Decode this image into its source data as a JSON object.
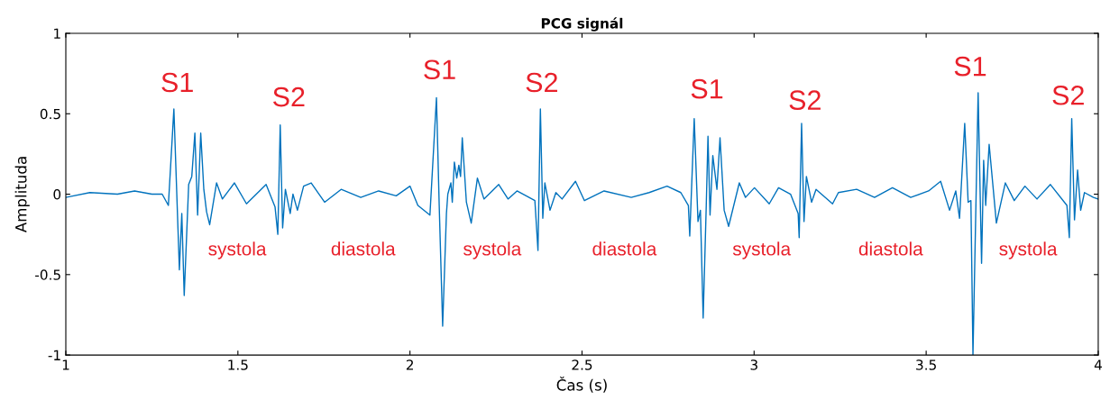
{
  "chart_data": {
    "type": "line",
    "title": "PCG signál",
    "xlabel": "Čas (s)",
    "ylabel": "Amplituda",
    "xlim": [
      1,
      4
    ],
    "ylim": [
      -1,
      1
    ],
    "xticks": [
      1,
      1.5,
      2,
      2.5,
      3,
      3.5,
      4
    ],
    "yticks": [
      {
        "value": -1,
        "label": "-1"
      },
      {
        "value": -0.5,
        "label": "-0.5"
      },
      0,
      0.5,
      1
    ],
    "grid": false,
    "legend": false,
    "series": [
      {
        "color": "#0072bd",
        "x": [
          1.0,
          1.07,
          1.15,
          1.2,
          1.25,
          1.28,
          1.298,
          1.314,
          1.33,
          1.337,
          1.344,
          1.357,
          1.366,
          1.375,
          1.383,
          1.392,
          1.401,
          1.409,
          1.418,
          1.438,
          1.455,
          1.49,
          1.525,
          1.582,
          1.608,
          1.616,
          1.623,
          1.63,
          1.638,
          1.652,
          1.66,
          1.673,
          1.691,
          1.713,
          1.752,
          1.8,
          1.857,
          1.909,
          1.96,
          2.0,
          2.023,
          2.058,
          2.077,
          2.085,
          2.095,
          2.106,
          2.11,
          2.119,
          2.123,
          2.129,
          2.136,
          2.142,
          2.147,
          2.152,
          2.164,
          2.178,
          2.196,
          2.215,
          2.258,
          2.285,
          2.311,
          2.363,
          2.372,
          2.379,
          2.386,
          2.392,
          2.407,
          2.424,
          2.442,
          2.481,
          2.507,
          2.564,
          2.643,
          2.695,
          2.747,
          2.787,
          2.809,
          2.813,
          2.826,
          2.837,
          2.844,
          2.852,
          2.861,
          2.866,
          2.872,
          2.88,
          2.892,
          2.901,
          2.913,
          2.926,
          2.957,
          2.975,
          3.001,
          3.044,
          3.071,
          3.106,
          3.128,
          3.131,
          3.138,
          3.145,
          3.152,
          3.167,
          3.18,
          3.228,
          3.245,
          3.298,
          3.35,
          3.402,
          3.455,
          3.507,
          3.542,
          3.568,
          3.586,
          3.597,
          3.612,
          3.622,
          3.63,
          3.636,
          3.651,
          3.661,
          3.667,
          3.673,
          3.683,
          3.704,
          3.73,
          3.756,
          3.787,
          3.822,
          3.861,
          3.909,
          3.916,
          3.923,
          3.931,
          3.94,
          3.949,
          3.96,
          3.986,
          4.0
        ],
        "values": [
          -0.02,
          0.01,
          0.0,
          0.02,
          0.0,
          0.0,
          -0.07,
          0.53,
          -0.47,
          -0.12,
          -0.63,
          0.06,
          0.11,
          0.38,
          -0.13,
          0.38,
          0.03,
          -0.11,
          -0.19,
          0.07,
          -0.03,
          0.07,
          -0.06,
          0.06,
          -0.08,
          -0.25,
          0.43,
          -0.21,
          0.03,
          -0.12,
          0.0,
          -0.1,
          0.05,
          0.07,
          -0.05,
          0.03,
          -0.02,
          0.02,
          -0.01,
          0.05,
          -0.07,
          -0.13,
          0.6,
          -0.07,
          -0.82,
          -0.12,
          0.0,
          0.07,
          -0.05,
          0.2,
          0.1,
          0.18,
          0.11,
          0.35,
          -0.05,
          -0.18,
          0.1,
          -0.03,
          0.06,
          -0.03,
          0.02,
          -0.04,
          -0.35,
          0.53,
          -0.15,
          0.07,
          -0.1,
          0.01,
          -0.03,
          0.08,
          -0.04,
          0.02,
          -0.02,
          0.01,
          0.05,
          0.01,
          -0.07,
          -0.26,
          0.47,
          -0.17,
          -0.1,
          -0.77,
          -0.07,
          0.36,
          -0.13,
          0.24,
          0.03,
          0.35,
          -0.1,
          -0.2,
          0.07,
          -0.02,
          0.04,
          -0.06,
          0.04,
          0.0,
          -0.12,
          -0.27,
          0.44,
          -0.17,
          0.11,
          -0.05,
          0.03,
          -0.06,
          0.01,
          0.03,
          -0.02,
          0.04,
          -0.02,
          0.02,
          0.08,
          -0.1,
          0.02,
          -0.15,
          0.44,
          -0.05,
          -0.04,
          -1.0,
          0.63,
          -0.43,
          0.21,
          -0.07,
          0.31,
          -0.18,
          0.07,
          -0.04,
          0.05,
          -0.03,
          0.06,
          -0.07,
          -0.27,
          0.47,
          -0.16,
          0.15,
          -0.1,
          0.01,
          -0.02,
          -0.03
        ]
      }
    ],
    "annotations": [
      "S1",
      "S2",
      "systola",
      "diastola",
      "S1",
      "S2",
      "systola",
      "diastola",
      "S1",
      "S2",
      "systola",
      "diastola",
      "S1",
      "S2",
      "systola"
    ]
  }
}
